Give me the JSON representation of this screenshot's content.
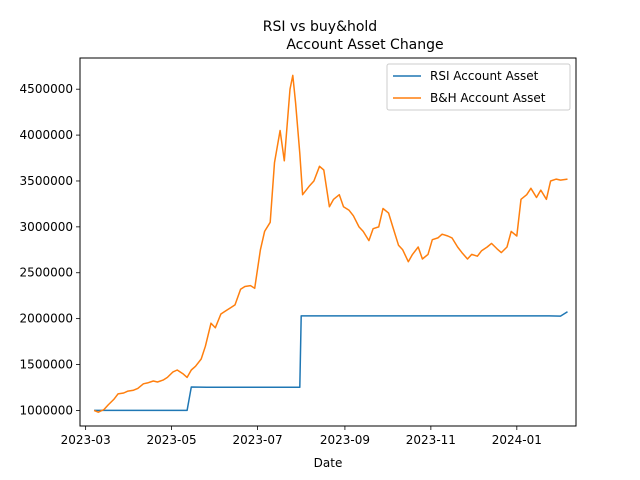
{
  "chart_data": {
    "type": "line",
    "title": "RSI vs buy&hold",
    "subtitle": "Account Asset Change",
    "xlabel": "Date",
    "ylabel": "",
    "xlim": [
      "2023-02-25",
      "2024-02-12"
    ],
    "ylim": [
      830000,
      4840000
    ],
    "grid": false,
    "legend_position": "top-right",
    "x_ticks": [
      "2023-03",
      "2023-05",
      "2023-07",
      "2023-09",
      "2023-11",
      "2024-01"
    ],
    "y_ticks": [
      "1000000",
      "1500000",
      "2000000",
      "2500000",
      "3000000",
      "3500000",
      "4000000",
      "4500000"
    ],
    "series": [
      {
        "name": "RSI Account Asset",
        "color": "#1f77b4",
        "points": [
          [
            "2023-03-07",
            1000000
          ],
          [
            "2023-05-12",
            1000000
          ],
          [
            "2023-05-15",
            1255000
          ],
          [
            "2023-05-26",
            1252000
          ],
          [
            "2023-07-31",
            1252000
          ],
          [
            "2023-08-01",
            2030000
          ],
          [
            "2024-01-24",
            2030000
          ],
          [
            "2024-02-01",
            2028000
          ],
          [
            "2024-02-06",
            2075000
          ]
        ]
      },
      {
        "name": "B&H Account Asset",
        "color": "#ff7f0e",
        "points": [
          [
            "2023-03-07",
            1000000
          ],
          [
            "2023-03-10",
            980000
          ],
          [
            "2023-03-14",
            1010000
          ],
          [
            "2023-03-17",
            1060000
          ],
          [
            "2023-03-21",
            1120000
          ],
          [
            "2023-03-24",
            1180000
          ],
          [
            "2023-03-28",
            1190000
          ],
          [
            "2023-03-31",
            1210000
          ],
          [
            "2023-04-04",
            1220000
          ],
          [
            "2023-04-07",
            1240000
          ],
          [
            "2023-04-11",
            1290000
          ],
          [
            "2023-04-14",
            1300000
          ],
          [
            "2023-04-18",
            1320000
          ],
          [
            "2023-04-21",
            1310000
          ],
          [
            "2023-04-25",
            1330000
          ],
          [
            "2023-04-28",
            1360000
          ],
          [
            "2023-05-02",
            1420000
          ],
          [
            "2023-05-05",
            1440000
          ],
          [
            "2023-05-09",
            1400000
          ],
          [
            "2023-05-12",
            1360000
          ],
          [
            "2023-05-15",
            1440000
          ],
          [
            "2023-05-18",
            1480000
          ],
          [
            "2023-05-22",
            1560000
          ],
          [
            "2023-05-25",
            1700000
          ],
          [
            "2023-05-29",
            1950000
          ],
          [
            "2023-06-01",
            1900000
          ],
          [
            "2023-06-05",
            2050000
          ],
          [
            "2023-06-08",
            2080000
          ],
          [
            "2023-06-12",
            2120000
          ],
          [
            "2023-06-15",
            2150000
          ],
          [
            "2023-06-19",
            2320000
          ],
          [
            "2023-06-22",
            2350000
          ],
          [
            "2023-06-26",
            2360000
          ],
          [
            "2023-06-29",
            2330000
          ],
          [
            "2023-07-03",
            2750000
          ],
          [
            "2023-07-06",
            2950000
          ],
          [
            "2023-07-10",
            3050000
          ],
          [
            "2023-07-13",
            3700000
          ],
          [
            "2023-07-17",
            4050000
          ],
          [
            "2023-07-20",
            3720000
          ],
          [
            "2023-07-24",
            4500000
          ],
          [
            "2023-07-26",
            4650000
          ],
          [
            "2023-07-28",
            4350000
          ],
          [
            "2023-07-31",
            3800000
          ],
          [
            "2023-08-02",
            3350000
          ],
          [
            "2023-08-07",
            3450000
          ],
          [
            "2023-08-10",
            3500000
          ],
          [
            "2023-08-14",
            3660000
          ],
          [
            "2023-08-17",
            3620000
          ],
          [
            "2023-08-21",
            3220000
          ],
          [
            "2023-08-24",
            3300000
          ],
          [
            "2023-08-28",
            3350000
          ],
          [
            "2023-08-31",
            3220000
          ],
          [
            "2023-09-04",
            3180000
          ],
          [
            "2023-09-07",
            3120000
          ],
          [
            "2023-09-11",
            3000000
          ],
          [
            "2023-09-14",
            2950000
          ],
          [
            "2023-09-18",
            2850000
          ],
          [
            "2023-09-21",
            2980000
          ],
          [
            "2023-09-25",
            3000000
          ],
          [
            "2023-09-28",
            3200000
          ],
          [
            "2023-10-02",
            3150000
          ],
          [
            "2023-10-05",
            3000000
          ],
          [
            "2023-10-09",
            2800000
          ],
          [
            "2023-10-12",
            2750000
          ],
          [
            "2023-10-16",
            2620000
          ],
          [
            "2023-10-19",
            2700000
          ],
          [
            "2023-10-23",
            2780000
          ],
          [
            "2023-10-26",
            2650000
          ],
          [
            "2023-10-30",
            2700000
          ],
          [
            "2023-11-02",
            2860000
          ],
          [
            "2023-11-06",
            2880000
          ],
          [
            "2023-11-09",
            2920000
          ],
          [
            "2023-11-13",
            2900000
          ],
          [
            "2023-11-16",
            2880000
          ],
          [
            "2023-11-20",
            2780000
          ],
          [
            "2023-11-23",
            2720000
          ],
          [
            "2023-11-27",
            2650000
          ],
          [
            "2023-11-30",
            2700000
          ],
          [
            "2023-12-04",
            2680000
          ],
          [
            "2023-12-07",
            2740000
          ],
          [
            "2023-12-11",
            2780000
          ],
          [
            "2023-12-14",
            2820000
          ],
          [
            "2023-12-18",
            2760000
          ],
          [
            "2023-12-21",
            2720000
          ],
          [
            "2023-12-25",
            2780000
          ],
          [
            "2023-12-28",
            2950000
          ],
          [
            "2024-01-01",
            2900000
          ],
          [
            "2024-01-04",
            3300000
          ],
          [
            "2024-01-08",
            3350000
          ],
          [
            "2024-01-11",
            3420000
          ],
          [
            "2024-01-15",
            3320000
          ],
          [
            "2024-01-18",
            3400000
          ],
          [
            "2024-01-22",
            3300000
          ],
          [
            "2024-01-25",
            3500000
          ],
          [
            "2024-01-29",
            3520000
          ],
          [
            "2024-02-01",
            3510000
          ],
          [
            "2024-02-06",
            3520000
          ]
        ]
      }
    ]
  }
}
